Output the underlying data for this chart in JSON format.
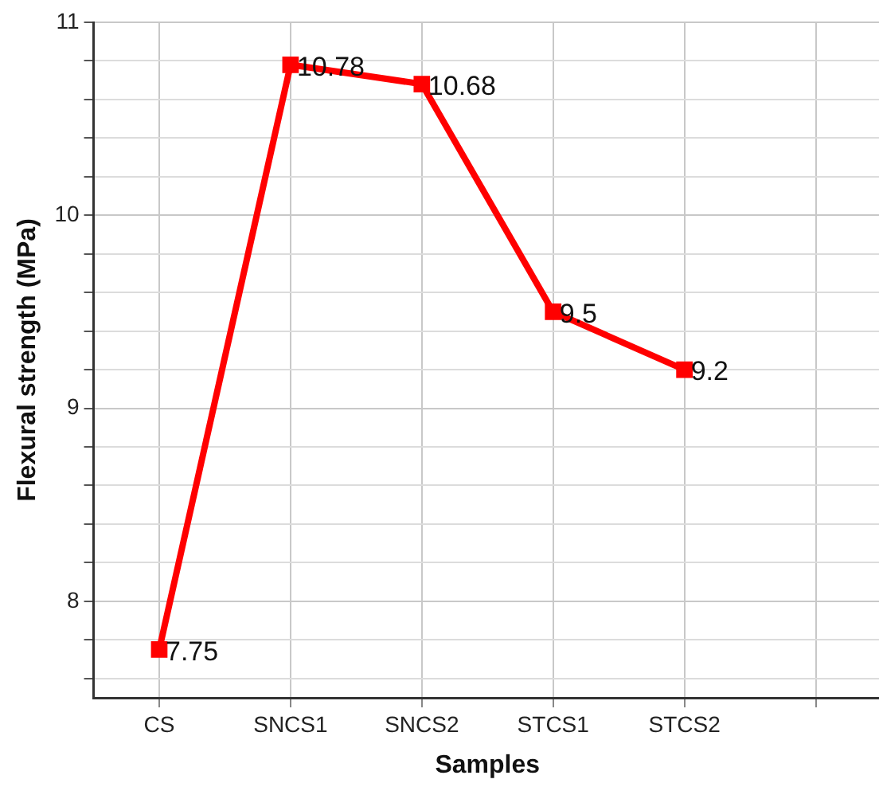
{
  "chart_data": {
    "type": "line",
    "xlabel": "Samples",
    "ylabel": "Flexural strength (MPa)",
    "categories": [
      "CS",
      "SNCS1",
      "SNCS2",
      "STCS1",
      "STCS2",
      null
    ],
    "series": [
      {
        "color": "#ff0000",
        "values": [
          7.75,
          10.78,
          10.68,
          9.5,
          9.2,
          null
        ]
      }
    ],
    "ylim": [
      7.5,
      11
    ],
    "yticks": [
      {
        "value": 7.6,
        "label": null
      },
      {
        "value": 7.8,
        "label": null
      },
      8,
      {
        "value": 8.2,
        "label": null
      },
      {
        "value": 8.4,
        "label": null
      },
      {
        "value": 8.6,
        "label": null
      },
      {
        "value": 8.8,
        "label": null
      },
      9,
      {
        "value": 9.2,
        "label": null
      },
      {
        "value": 9.4,
        "label": null
      },
      {
        "value": 9.6,
        "label": null
      },
      {
        "value": 9.8,
        "label": null
      },
      10,
      {
        "value": 10.2,
        "label": null
      },
      {
        "value": 10.4,
        "label": null
      },
      {
        "value": 10.6,
        "label": null
      },
      {
        "value": 10.8,
        "label": null
      },
      11
    ],
    "grid": true,
    "legend": false,
    "marker": "square",
    "line_style": "solid",
    "data_labels": true
  }
}
